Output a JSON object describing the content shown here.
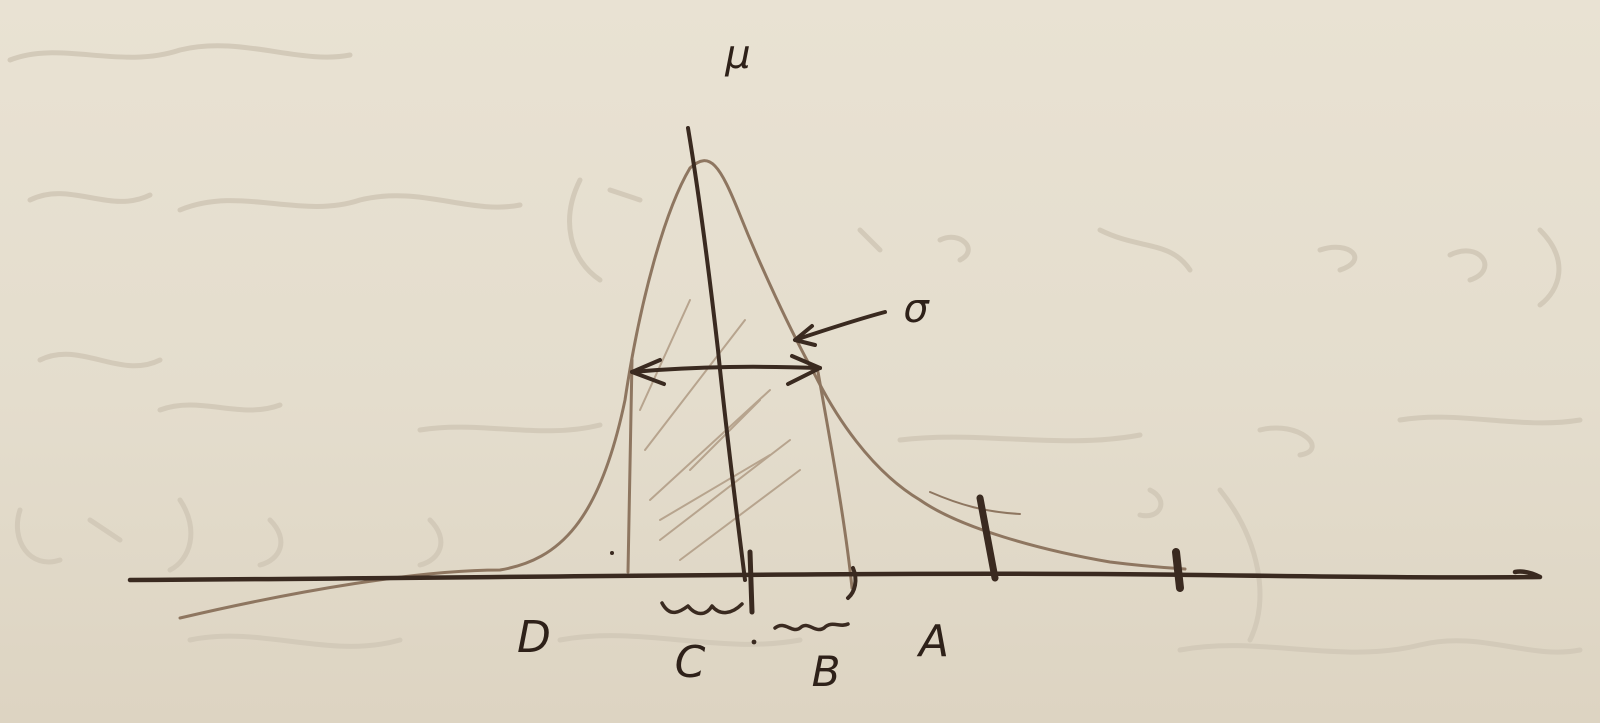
{
  "diagram": {
    "labels": {
      "mu": "μ",
      "sigma": "σ",
      "a": "A",
      "b": "B",
      "c": "C",
      "d": "D"
    }
  }
}
